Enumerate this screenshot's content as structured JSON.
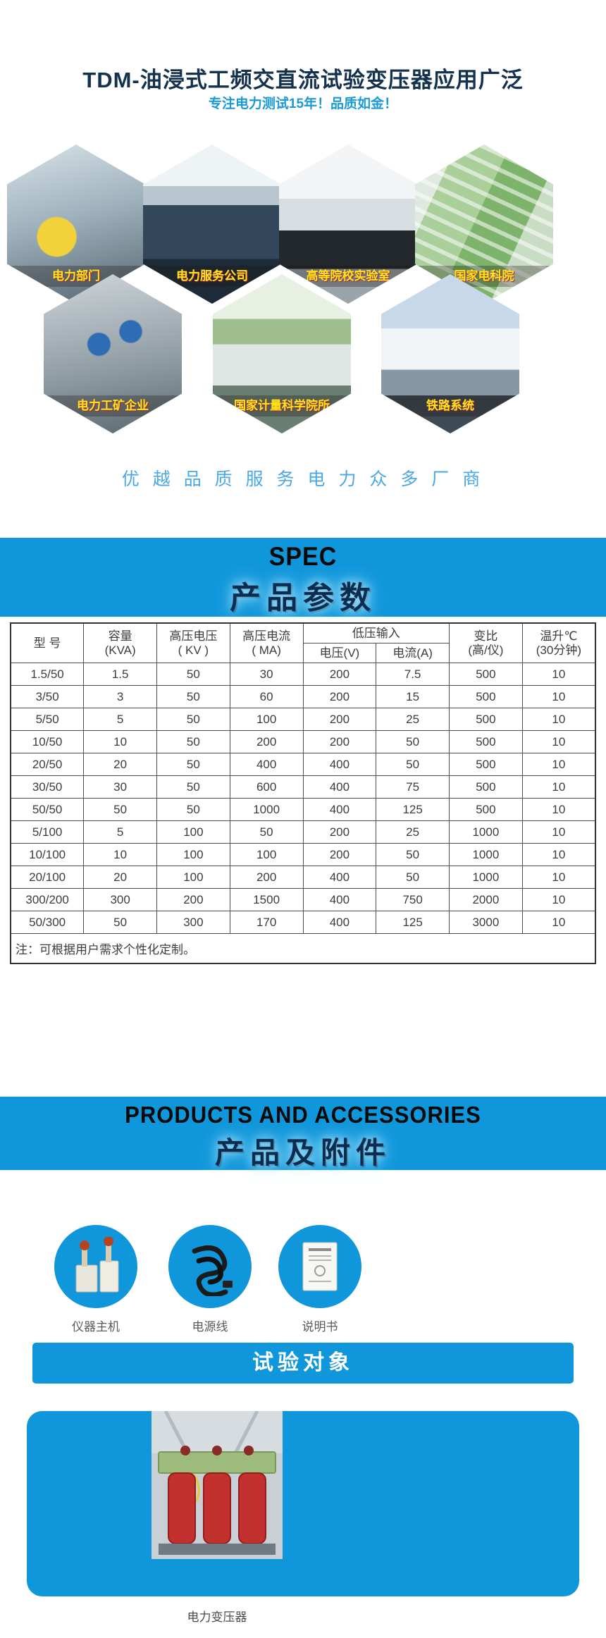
{
  "page": {
    "title": "TDM-油浸式工频交直流试验变压器应用广泛",
    "subtitle": "专注电力测试15年！品质如金！",
    "tagline": "优 越 品 质 服 务 电 力 众 多 厂 商"
  },
  "colors": {
    "accent_blue": "#1096db",
    "subtitle_blue": "#1a9ad8",
    "tagline_blue": "#4aa8e8",
    "hex_label_yellow": "#ffe61a",
    "title_navy": "#14314e",
    "banner_cn_navy": "#0d2c52"
  },
  "hexagons": [
    {
      "label": "电力部门",
      "photo": "worker-yellow-helmet"
    },
    {
      "label": "电力服务公司",
      "photo": "office-cubicles"
    },
    {
      "label": "高等院校实验室",
      "photo": "laboratory"
    },
    {
      "label": "国家电科院",
      "photo": "campus-aerial"
    },
    {
      "label": "电力工矿企业",
      "photo": "maintenance-workers"
    },
    {
      "label": "国家计量科学院所",
      "photo": "institute-building"
    },
    {
      "label": "铁路系统",
      "photo": "high-speed-train"
    }
  ],
  "spec_section": {
    "title_en": "SPEC",
    "title_cn": "产品参数"
  },
  "spec_table": {
    "headers": {
      "model": "型  号",
      "capacity": "容量\n(KVA)",
      "hv_voltage": "高压电压\n( KV )",
      "hv_current": "高压电流\n( MA)",
      "lv_input": "低压输入",
      "lv_voltage": "电压(V)",
      "lv_current": "电流(A)",
      "ratio": "变比\n(高/仪)",
      "temp_rise": "温升℃\n(30分钟)"
    },
    "rows": [
      [
        "1.5/50",
        "1.5",
        "50",
        "30",
        "200",
        "7.5",
        "500",
        "10"
      ],
      [
        "3/50",
        "3",
        "50",
        "60",
        "200",
        "15",
        "500",
        "10"
      ],
      [
        "5/50",
        "5",
        "50",
        "100",
        "200",
        "25",
        "500",
        "10"
      ],
      [
        "10/50",
        "10",
        "50",
        "200",
        "200",
        "50",
        "500",
        "10"
      ],
      [
        "20/50",
        "20",
        "50",
        "400",
        "400",
        "50",
        "500",
        "10"
      ],
      [
        "30/50",
        "30",
        "50",
        "600",
        "400",
        "75",
        "500",
        "10"
      ],
      [
        "50/50",
        "50",
        "50",
        "1000",
        "400",
        "125",
        "500",
        "10"
      ],
      [
        "5/100",
        "5",
        "100",
        "50",
        "200",
        "25",
        "1000",
        "10"
      ],
      [
        "10/100",
        "10",
        "100",
        "100",
        "200",
        "50",
        "1000",
        "10"
      ],
      [
        "20/100",
        "20",
        "100",
        "200",
        "400",
        "50",
        "1000",
        "10"
      ],
      [
        "300/200",
        "300",
        "200",
        "1500",
        "400",
        "750",
        "2000",
        "10"
      ],
      [
        "50/300",
        "50",
        "300",
        "170",
        "400",
        "125",
        "3000",
        "10"
      ]
    ],
    "note": "注：可根据用户需求个性化定制。"
  },
  "products_section": {
    "title_en": "PRODUCTS AND ACCESSORIES",
    "title_cn": "产品及附件"
  },
  "accessories": [
    {
      "label": "仪器主机",
      "photo": "test-transformer-unit"
    },
    {
      "label": "电源线",
      "photo": "power-cord"
    },
    {
      "label": "说明书",
      "photo": "manual-booklet"
    }
  ],
  "test_object_section": {
    "banner": "试验对象",
    "caption": "电力变压器",
    "photo": "dry-type-power-transformer"
  }
}
